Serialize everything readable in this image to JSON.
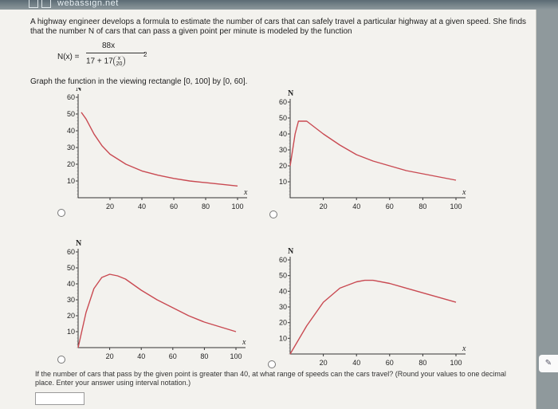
{
  "topbar": {
    "brand": "webassign.net"
  },
  "problem": {
    "text": "A highway engineer develops a formula to estimate the number of cars that can safely travel a particular highway at a given speed. She finds that the number N of cars that can pass a given point per minute is modeled by the function",
    "formula": {
      "lhs": "N(x) =",
      "numerator": "88x",
      "denominator_prefix": "17 + 17",
      "inner_num": "x",
      "inner_den": "20",
      "exponent": "2"
    }
  },
  "instruction": "Graph the function in the viewing rectangle [0, 100] by [0, 60].",
  "graph_labels": {
    "ylabel": "N",
    "xlabel": "x"
  },
  "chart_data": [
    {
      "type": "line",
      "option": 1,
      "xlim": [
        0,
        100
      ],
      "ylim": [
        0,
        60
      ],
      "xticks": [
        "20",
        "40",
        "60",
        "80",
        "100"
      ],
      "yticks": [
        "10",
        "20",
        "30",
        "40",
        "50",
        "60"
      ],
      "x": [
        2,
        5,
        10,
        15,
        20,
        30,
        40,
        50,
        60,
        70,
        80,
        90,
        100
      ],
      "y": [
        51,
        47,
        38,
        31,
        26,
        20,
        16,
        13.5,
        11.5,
        10,
        9,
        8,
        7
      ]
    },
    {
      "type": "line",
      "option": 2,
      "xlim": [
        0,
        100
      ],
      "ylim": [
        0,
        60
      ],
      "xticks": [
        "20",
        "40",
        "60",
        "80",
        "100"
      ],
      "yticks": [
        "10",
        "20",
        "30",
        "40",
        "50",
        "60"
      ],
      "x": [
        0,
        3,
        5,
        10,
        15,
        20,
        30,
        40,
        50,
        60,
        70,
        80,
        90,
        100
      ],
      "y": [
        20,
        40,
        48,
        48,
        44,
        40,
        33,
        27,
        23,
        20,
        17,
        15,
        13,
        11
      ]
    },
    {
      "type": "line",
      "option": 3,
      "xlim": [
        0,
        100
      ],
      "ylim": [
        0,
        60
      ],
      "xticks": [
        "20",
        "40",
        "60",
        "80",
        "100"
      ],
      "yticks": [
        "10",
        "20",
        "30",
        "40",
        "50",
        "60"
      ],
      "x": [
        0,
        5,
        10,
        15,
        20,
        25,
        30,
        40,
        50,
        60,
        70,
        80,
        90,
        100
      ],
      "y": [
        0,
        22,
        37,
        44,
        46,
        45,
        43,
        36,
        30,
        25,
        20,
        16,
        13,
        10
      ]
    },
    {
      "type": "line",
      "option": 4,
      "xlim": [
        0,
        100
      ],
      "ylim": [
        0,
        60
      ],
      "xticks": [
        "20",
        "40",
        "60",
        "80",
        "100"
      ],
      "yticks": [
        "10",
        "20",
        "30",
        "40",
        "50",
        "60"
      ],
      "x": [
        0,
        10,
        20,
        30,
        40,
        45,
        50,
        60,
        70,
        80,
        90,
        100
      ],
      "y": [
        0,
        18,
        33,
        42,
        46,
        47,
        47,
        45,
        42,
        39,
        36,
        33
      ]
    }
  ],
  "question": "If the number of cars that pass by the given point is greater than 40, at what range of speeds can the cars travel? (Round your values to one decimal place. Enter your answer using interval notation.)"
}
